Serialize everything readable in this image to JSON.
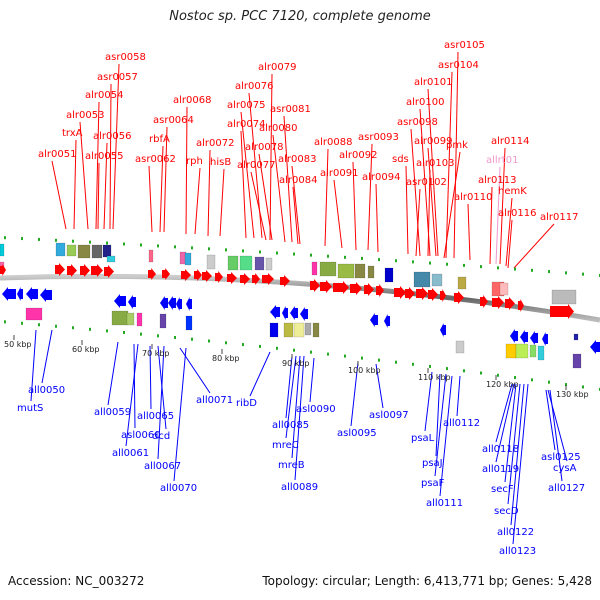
{
  "title": "Nostoc sp. PCC 7120, complete genome",
  "footer": {
    "accession": "Accession: NC_003272",
    "summary": "Topology: circular; Length: 6,413,771 bp; Genes: 5,428"
  },
  "colors": {
    "forward": "#ff0000",
    "reverse": "#0000ff",
    "highlight": "#ee99cc",
    "backbone": "#888888",
    "tick": "#22aa22"
  },
  "ticks": [
    "50 kbp",
    "60 kbp",
    "70 kbp",
    "80 kbp",
    "90 kbp",
    "100 kbp",
    "110 kbp",
    "120 kbp",
    "130 kbp"
  ],
  "forward_labels": [
    "asr0058",
    "asr0057",
    "alr0054",
    "alr0053",
    "trxA",
    "alr0056",
    "alr0051",
    "alr0055",
    "asr0064",
    "rbfA",
    "asr0062",
    "alr0068",
    "rph",
    "alr0079",
    "alr0076",
    "alr0075",
    "alr0074",
    "alr0072",
    "hisB",
    "alr0078",
    "alr0077",
    "asr0081",
    "alr0080",
    "alr0083",
    "alr0084",
    "alr0088",
    "asr0093",
    "alr0092",
    "alr0091",
    "alr0094",
    "asr0105",
    "asr0104",
    "alr0101",
    "alr0100",
    "asr0098",
    "alr0099",
    "sds",
    "pmk",
    "alr0103",
    "asr0102",
    "alr0110",
    "alr0114",
    "allrt01",
    "alr0113",
    "hemK",
    "alr0116",
    "alr0117"
  ],
  "reverse_labels": [
    "all0050",
    "mutS",
    "all0059",
    "asl0060",
    "all0061",
    "all0065",
    "dcd",
    "all0067",
    "all0070",
    "all0071",
    "ribD",
    "all0085",
    "mreC",
    "mreB",
    "all0089",
    "asl0090",
    "asl0095",
    "asl0097",
    "psaL",
    "psaJ",
    "psaF",
    "all0111",
    "all0112",
    "all0118",
    "all0119",
    "secF",
    "secD",
    "all0122",
    "all0123",
    "asl0125",
    "cysA",
    "all0127"
  ]
}
